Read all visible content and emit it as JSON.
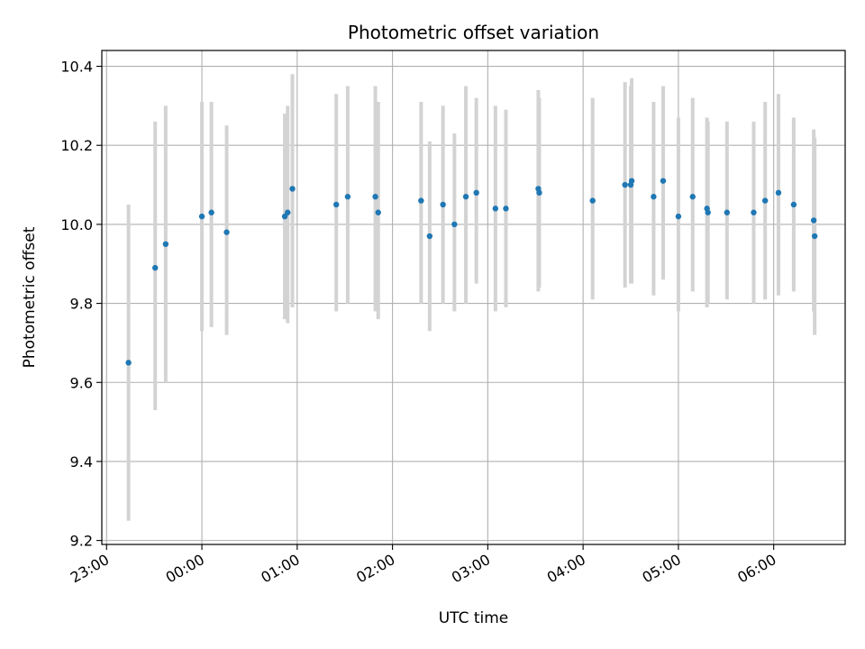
{
  "chart_data": {
    "type": "scatter",
    "title": "Photometric offset variation",
    "xlabel": "UTC time",
    "ylabel": "Photometric offset",
    "xlim_hours": [
      -1.05,
      6.75
    ],
    "ylim": [
      9.19,
      10.44
    ],
    "x_ticks": [
      {
        "h": -1,
        "label": "23:00"
      },
      {
        "h": 0,
        "label": "00:00"
      },
      {
        "h": 1,
        "label": "01:00"
      },
      {
        "h": 2,
        "label": "02:00"
      },
      {
        "h": 3,
        "label": "03:00"
      },
      {
        "h": 4,
        "label": "04:00"
      },
      {
        "h": 5,
        "label": "05:00"
      },
      {
        "h": 6,
        "label": "06:00"
      }
    ],
    "y_ticks": [
      {
        "v": 9.2,
        "label": "9.2"
      },
      {
        "v": 9.4,
        "label": "9.4"
      },
      {
        "v": 9.6,
        "label": "9.6"
      },
      {
        "v": 9.8,
        "label": "9.8"
      },
      {
        "v": 10.0,
        "label": "10.0"
      },
      {
        "v": 10.2,
        "label": "10.2"
      },
      {
        "v": 10.4,
        "label": "10.4"
      }
    ],
    "grid": true,
    "colors": {
      "point": "#1f77b4",
      "errorbar": "#d3d3d3",
      "grid": "#b0b0b0"
    },
    "points": [
      {
        "t": -0.77,
        "y": 9.65,
        "lo": 9.25,
        "hi": 10.05
      },
      {
        "t": -0.49,
        "y": 9.89,
        "lo": 9.53,
        "hi": 10.26
      },
      {
        "t": -0.38,
        "y": 9.95,
        "lo": 9.6,
        "hi": 10.3
      },
      {
        "t": 0.0,
        "y": 10.02,
        "lo": 9.73,
        "hi": 10.31
      },
      {
        "t": 0.1,
        "y": 10.03,
        "lo": 9.74,
        "hi": 10.31
      },
      {
        "t": 0.26,
        "y": 9.98,
        "lo": 9.72,
        "hi": 10.25
      },
      {
        "t": 0.87,
        "y": 10.02,
        "lo": 9.76,
        "hi": 10.28
      },
      {
        "t": 0.9,
        "y": 10.03,
        "lo": 9.75,
        "hi": 10.3
      },
      {
        "t": 0.95,
        "y": 10.09,
        "lo": 9.79,
        "hi": 10.38
      },
      {
        "t": 1.41,
        "y": 10.05,
        "lo": 9.78,
        "hi": 10.33
      },
      {
        "t": 1.53,
        "y": 10.07,
        "lo": 9.8,
        "hi": 10.35
      },
      {
        "t": 1.82,
        "y": 10.07,
        "lo": 9.78,
        "hi": 10.35
      },
      {
        "t": 1.85,
        "y": 10.03,
        "lo": 9.76,
        "hi": 10.31
      },
      {
        "t": 2.3,
        "y": 10.06,
        "lo": 9.8,
        "hi": 10.31
      },
      {
        "t": 2.39,
        "y": 9.97,
        "lo": 9.73,
        "hi": 10.21
      },
      {
        "t": 2.53,
        "y": 10.05,
        "lo": 9.8,
        "hi": 10.3
      },
      {
        "t": 2.65,
        "y": 10.0,
        "lo": 9.78,
        "hi": 10.23
      },
      {
        "t": 2.77,
        "y": 10.07,
        "lo": 9.8,
        "hi": 10.35
      },
      {
        "t": 2.88,
        "y": 10.08,
        "lo": 9.85,
        "hi": 10.32
      },
      {
        "t": 3.08,
        "y": 10.04,
        "lo": 9.78,
        "hi": 10.3
      },
      {
        "t": 3.19,
        "y": 10.04,
        "lo": 9.79,
        "hi": 10.29
      },
      {
        "t": 3.53,
        "y": 10.09,
        "lo": 9.83,
        "hi": 10.34
      },
      {
        "t": 3.54,
        "y": 10.08,
        "lo": 9.84,
        "hi": 10.32
      },
      {
        "t": 4.1,
        "y": 10.06,
        "lo": 9.81,
        "hi": 10.32
      },
      {
        "t": 4.44,
        "y": 10.1,
        "lo": 9.84,
        "hi": 10.36
      },
      {
        "t": 4.5,
        "y": 10.1,
        "lo": 9.85,
        "hi": 10.35
      },
      {
        "t": 4.51,
        "y": 10.11,
        "lo": 9.85,
        "hi": 10.37
      },
      {
        "t": 4.74,
        "y": 10.07,
        "lo": 9.82,
        "hi": 10.31
      },
      {
        "t": 4.84,
        "y": 10.11,
        "lo": 9.86,
        "hi": 10.35
      },
      {
        "t": 5.0,
        "y": 10.02,
        "lo": 9.78,
        "hi": 10.27
      },
      {
        "t": 5.15,
        "y": 10.07,
        "lo": 9.83,
        "hi": 10.32
      },
      {
        "t": 5.3,
        "y": 10.04,
        "lo": 9.79,
        "hi": 10.27
      },
      {
        "t": 5.31,
        "y": 10.03,
        "lo": 9.8,
        "hi": 10.26
      },
      {
        "t": 5.51,
        "y": 10.03,
        "lo": 9.81,
        "hi": 10.26
      },
      {
        "t": 5.79,
        "y": 10.03,
        "lo": 9.8,
        "hi": 10.26
      },
      {
        "t": 5.91,
        "y": 10.06,
        "lo": 9.81,
        "hi": 10.31
      },
      {
        "t": 6.05,
        "y": 10.08,
        "lo": 9.82,
        "hi": 10.33
      },
      {
        "t": 6.21,
        "y": 10.05,
        "lo": 9.83,
        "hi": 10.27
      },
      {
        "t": 6.42,
        "y": 10.01,
        "lo": 9.78,
        "hi": 10.24
      },
      {
        "t": 6.43,
        "y": 9.97,
        "lo": 9.72,
        "hi": 10.22
      }
    ]
  }
}
